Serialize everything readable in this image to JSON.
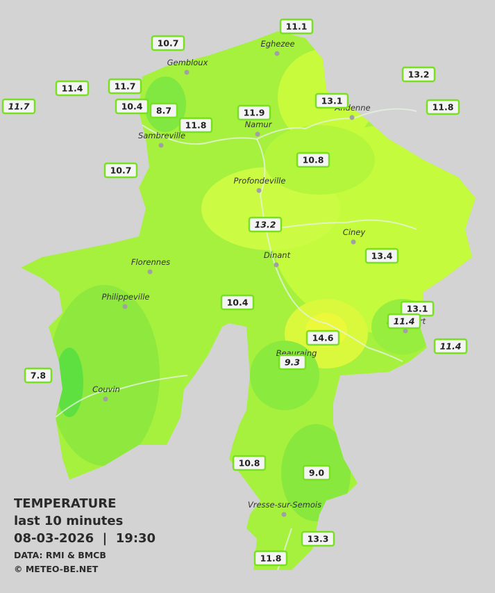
{
  "legend": {
    "title": "TEMPERATURE",
    "subtitle": "last 10 minutes",
    "datetime": "08-03-2026  |  19:30",
    "source": "DATA: RMI & BMCB",
    "copyright": "© METEO-BE.NET"
  },
  "towns": [
    "Eghezee",
    "Gembloux",
    "Andenne",
    "Namur",
    "Sambreville",
    "Profondeville",
    "Ciney",
    "Florennes",
    "Dinant",
    "Philippeville",
    "Beauraing",
    "Couvin",
    "Vresse-sur-Semois",
    "Rochefort"
  ],
  "stations": {
    "values": [
      10.7,
      11.1,
      13.2,
      11.4,
      11.7,
      11.7,
      10.4,
      8.7,
      13.1,
      11.8,
      11.9,
      11.8,
      10.8,
      10.7,
      13.2,
      13.4,
      10.4,
      13.1,
      11.4,
      11.4,
      14.6,
      9.3,
      7.8,
      10.8,
      9.0,
      13.3,
      11.8
    ],
    "value_labels": [
      "10.7",
      "11.1",
      "13.2",
      "11.4",
      "11.7",
      "11.7",
      "10.4",
      "8.7",
      "13.1",
      "11.8",
      "11.9",
      "11.8",
      "10.8",
      "10.7",
      "13.2",
      "13.4",
      "10.4",
      "13.1",
      "11.4",
      "11.4",
      "14.6",
      "9.3",
      "7.8",
      "10.8",
      "9.0",
      "13.3",
      "11.8"
    ],
    "italic": [
      false,
      false,
      false,
      false,
      false,
      true,
      false,
      false,
      false,
      false,
      false,
      false,
      false,
      false,
      true,
      false,
      false,
      false,
      true,
      true,
      false,
      true,
      false,
      false,
      false,
      false,
      false
    ]
  }
}
